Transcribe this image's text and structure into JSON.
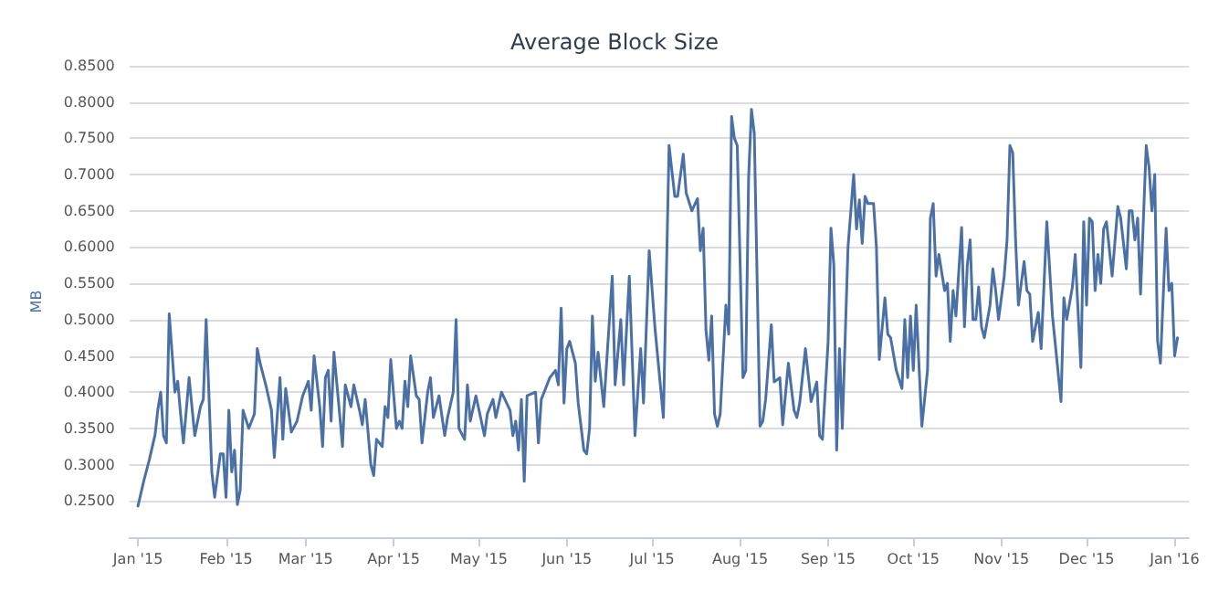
{
  "chart_data": {
    "type": "line",
    "title": "Average Block Size",
    "ylabel": "MB",
    "xlim": [
      "2014-12-29",
      "2016-01-06"
    ],
    "xticks": [
      {
        "value": "2015-01-01",
        "label": "Jan '15"
      },
      {
        "value": "2015-02-01",
        "label": "Feb '15"
      },
      {
        "value": "2015-03-01",
        "label": "Mar '15"
      },
      {
        "value": "2015-04-01",
        "label": "Apr '15"
      },
      {
        "value": "2015-05-01",
        "label": "May '15"
      },
      {
        "value": "2015-06-01",
        "label": "Jun '15"
      },
      {
        "value": "2015-07-01",
        "label": "Jul '15"
      },
      {
        "value": "2015-08-01",
        "label": "Aug '15"
      },
      {
        "value": "2015-09-01",
        "label": "Sep '15"
      },
      {
        "value": "2015-10-01",
        "label": "Oct '15"
      },
      {
        "value": "2015-11-01",
        "label": "Nov '15"
      },
      {
        "value": "2015-12-01",
        "label": "Dec '15"
      },
      {
        "value": "2016-01-01",
        "label": "Jan '16"
      }
    ],
    "ylim": [
      0.2,
      0.85
    ],
    "yticks": [
      {
        "value": 0.25,
        "label": "0.2500"
      },
      {
        "value": 0.3,
        "label": "0.3000"
      },
      {
        "value": 0.35,
        "label": "0.3500"
      },
      {
        "value": 0.4,
        "label": "0.4000"
      },
      {
        "value": 0.45,
        "label": "0.4500"
      },
      {
        "value": 0.5,
        "label": "0.5000"
      },
      {
        "value": 0.55,
        "label": "0.5500"
      },
      {
        "value": 0.6,
        "label": "0.6000"
      },
      {
        "value": 0.65,
        "label": "0.6500"
      },
      {
        "value": 0.7,
        "label": "0.7000"
      },
      {
        "value": 0.75,
        "label": "0.7500"
      },
      {
        "value": 0.8,
        "label": "0.8000"
      },
      {
        "value": 0.85,
        "label": "0.8500"
      }
    ],
    "grid": "y",
    "marker": "none",
    "line_style": "solid",
    "series": [
      {
        "color": "#4a70a6",
        "x": [
          "2015-01-01",
          "2015-01-03",
          "2015-01-05",
          "2015-01-07",
          "2015-01-08",
          "2015-01-09",
          "2015-01-10",
          "2015-01-11",
          "2015-01-12",
          "2015-01-14",
          "2015-01-15",
          "2015-01-16",
          "2015-01-17",
          "2015-01-19",
          "2015-01-21",
          "2015-01-23",
          "2015-01-24",
          "2015-01-25",
          "2015-01-27",
          "2015-01-28",
          "2015-01-30",
          "2015-01-31",
          "2015-02-01",
          "2015-02-02",
          "2015-02-03",
          "2015-02-04",
          "2015-02-05",
          "2015-02-06",
          "2015-02-07",
          "2015-02-09",
          "2015-02-11",
          "2015-02-12",
          "2015-02-13",
          "2015-02-15",
          "2015-02-17",
          "2015-02-18",
          "2015-02-20",
          "2015-02-21",
          "2015-02-22",
          "2015-02-24",
          "2015-02-26",
          "2015-02-28",
          "2015-03-02",
          "2015-03-03",
          "2015-03-04",
          "2015-03-06",
          "2015-03-07",
          "2015-03-08",
          "2015-03-09",
          "2015-03-10",
          "2015-03-11",
          "2015-03-13",
          "2015-03-14",
          "2015-03-15",
          "2015-03-17",
          "2015-03-18",
          "2015-03-20",
          "2015-03-21",
          "2015-03-22",
          "2015-03-24",
          "2015-03-25",
          "2015-03-26",
          "2015-03-28",
          "2015-03-29",
          "2015-03-30",
          "2015-03-31",
          "2015-04-02",
          "2015-04-03",
          "2015-04-04",
          "2015-04-05",
          "2015-04-06",
          "2015-04-07",
          "2015-04-09",
          "2015-04-10",
          "2015-04-11",
          "2015-04-13",
          "2015-04-14",
          "2015-04-15",
          "2015-04-17",
          "2015-04-19",
          "2015-04-20",
          "2015-04-22",
          "2015-04-23",
          "2015-04-24",
          "2015-04-26",
          "2015-04-27",
          "2015-04-28",
          "2015-04-30",
          "2015-05-03",
          "2015-05-04",
          "2015-05-06",
          "2015-05-07",
          "2015-05-09",
          "2015-05-12",
          "2015-05-13",
          "2015-05-14",
          "2015-05-15",
          "2015-05-16",
          "2015-05-17",
          "2015-05-18",
          "2015-05-21",
          "2015-05-22",
          "2015-05-23",
          "2015-05-24",
          "2015-05-26",
          "2015-05-28",
          "2015-05-29",
          "2015-05-30",
          "2015-05-31",
          "2015-06-01",
          "2015-06-02",
          "2015-06-04",
          "2015-06-05",
          "2015-06-07",
          "2015-06-08",
          "2015-06-09",
          "2015-06-10",
          "2015-06-11",
          "2015-06-12",
          "2015-06-14",
          "2015-06-16",
          "2015-06-17",
          "2015-06-18",
          "2015-06-20",
          "2015-06-21",
          "2015-06-23",
          "2015-06-25",
          "2015-06-27",
          "2015-06-28",
          "2015-06-30",
          "2015-07-02",
          "2015-07-05",
          "2015-07-07",
          "2015-07-09",
          "2015-07-10",
          "2015-07-12",
          "2015-07-13",
          "2015-07-15",
          "2015-07-17",
          "2015-07-18",
          "2015-07-19",
          "2015-07-20",
          "2015-07-21",
          "2015-07-22",
          "2015-07-23",
          "2015-07-24",
          "2015-07-25",
          "2015-07-27",
          "2015-07-28",
          "2015-07-29",
          "2015-07-30",
          "2015-07-31",
          "2015-08-02",
          "2015-08-03",
          "2015-08-04",
          "2015-08-05",
          "2015-08-06",
          "2015-08-08",
          "2015-08-09",
          "2015-08-10",
          "2015-08-12",
          "2015-08-13",
          "2015-08-15",
          "2015-08-16",
          "2015-08-18",
          "2015-08-20",
          "2015-08-21",
          "2015-08-22",
          "2015-08-24",
          "2015-08-26",
          "2015-08-28",
          "2015-08-29",
          "2015-08-30",
          "2015-09-01",
          "2015-09-02",
          "2015-09-03",
          "2015-09-04",
          "2015-09-05",
          "2015-09-06",
          "2015-09-08",
          "2015-09-10",
          "2015-09-11",
          "2015-09-12",
          "2015-09-13",
          "2015-09-14",
          "2015-09-15",
          "2015-09-17",
          "2015-09-18",
          "2015-09-19",
          "2015-09-21",
          "2015-09-22",
          "2015-09-23",
          "2015-09-25",
          "2015-09-27",
          "2015-09-28",
          "2015-09-29",
          "2015-09-30",
          "2015-10-01",
          "2015-10-02",
          "2015-10-04",
          "2015-10-06",
          "2015-10-07",
          "2015-10-08",
          "2015-10-09",
          "2015-10-10",
          "2015-10-12",
          "2015-10-13",
          "2015-10-14",
          "2015-10-15",
          "2015-10-16",
          "2015-10-18",
          "2015-10-19",
          "2015-10-20",
          "2015-10-21",
          "2015-10-22",
          "2015-10-23",
          "2015-10-24",
          "2015-10-25",
          "2015-10-26",
          "2015-10-28",
          "2015-10-29",
          "2015-10-30",
          "2015-10-31",
          "2015-11-02",
          "2015-11-03",
          "2015-11-04",
          "2015-11-05",
          "2015-11-06",
          "2015-11-07",
          "2015-11-09",
          "2015-11-10",
          "2015-11-11",
          "2015-11-12",
          "2015-11-14",
          "2015-11-15",
          "2015-11-17",
          "2015-11-19",
          "2015-11-22",
          "2015-11-23",
          "2015-11-24",
          "2015-11-26",
          "2015-11-27",
          "2015-11-29",
          "2015-11-30",
          "2015-12-01",
          "2015-12-02",
          "2015-12-03",
          "2015-12-04",
          "2015-12-05",
          "2015-12-06",
          "2015-12-07",
          "2015-12-08",
          "2015-12-10",
          "2015-12-12",
          "2015-12-13",
          "2015-12-15",
          "2015-12-16",
          "2015-12-17",
          "2015-12-18",
          "2015-12-19",
          "2015-12-20",
          "2015-12-22",
          "2015-12-23",
          "2015-12-24",
          "2015-12-25",
          "2015-12-26",
          "2015-12-27",
          "2015-12-29",
          "2015-12-30",
          "2015-12-31",
          "2016-01-01",
          "2016-01-02"
        ],
        "values": [
          0.243,
          0.277,
          0.307,
          0.341,
          0.376,
          0.4,
          0.34,
          0.33,
          0.508,
          0.4,
          0.415,
          0.37,
          0.33,
          0.42,
          0.34,
          0.38,
          0.39,
          0.5,
          0.29,
          0.255,
          0.315,
          0.315,
          0.255,
          0.375,
          0.29,
          0.32,
          0.245,
          0.265,
          0.375,
          0.35,
          0.37,
          0.46,
          0.44,
          0.41,
          0.375,
          0.31,
          0.42,
          0.335,
          0.405,
          0.345,
          0.36,
          0.395,
          0.415,
          0.375,
          0.45,
          0.38,
          0.325,
          0.42,
          0.43,
          0.36,
          0.455,
          0.37,
          0.325,
          0.41,
          0.38,
          0.41,
          0.375,
          0.355,
          0.39,
          0.3,
          0.285,
          0.335,
          0.325,
          0.38,
          0.365,
          0.445,
          0.35,
          0.36,
          0.35,
          0.415,
          0.38,
          0.45,
          0.395,
          0.39,
          0.33,
          0.4,
          0.42,
          0.365,
          0.395,
          0.34,
          0.365,
          0.4,
          0.5,
          0.35,
          0.335,
          0.41,
          0.36,
          0.395,
          0.34,
          0.37,
          0.39,
          0.365,
          0.4,
          0.375,
          0.34,
          0.36,
          0.32,
          0.39,
          0.277,
          0.395,
          0.4,
          0.33,
          0.39,
          0.4,
          0.42,
          0.43,
          0.41,
          0.516,
          0.385,
          0.46,
          0.47,
          0.44,
          0.385,
          0.32,
          0.315,
          0.35,
          0.505,
          0.415,
          0.455,
          0.38,
          0.5,
          0.56,
          0.41,
          0.5,
          0.41,
          0.56,
          0.34,
          0.46,
          0.385,
          0.595,
          0.49,
          0.365,
          0.74,
          0.67,
          0.67,
          0.728,
          0.675,
          0.65,
          0.667,
          0.595,
          0.626,
          0.485,
          0.444,
          0.505,
          0.37,
          0.353,
          0.37,
          0.52,
          0.48,
          0.78,
          0.75,
          0.74,
          0.42,
          0.43,
          0.695,
          0.79,
          0.757,
          0.353,
          0.36,
          0.39,
          0.493,
          0.414,
          0.42,
          0.355,
          0.44,
          0.375,
          0.365,
          0.385,
          0.46,
          0.387,
          0.414,
          0.34,
          0.335,
          0.47,
          0.626,
          0.576,
          0.32,
          0.46,
          0.35,
          0.6,
          0.7,
          0.625,
          0.665,
          0.605,
          0.67,
          0.66,
          0.66,
          0.6,
          0.445,
          0.53,
          0.48,
          0.475,
          0.43,
          0.405,
          0.5,
          0.42,
          0.505,
          0.43,
          0.52,
          0.353,
          0.43,
          0.64,
          0.66,
          0.56,
          0.59,
          0.54,
          0.55,
          0.47,
          0.54,
          0.505,
          0.627,
          0.49,
          0.575,
          0.61,
          0.5,
          0.5,
          0.545,
          0.49,
          0.475,
          0.52,
          0.57,
          0.54,
          0.5,
          0.56,
          0.61,
          0.74,
          0.73,
          0.61,
          0.52,
          0.58,
          0.54,
          0.535,
          0.47,
          0.51,
          0.46,
          0.635,
          0.505,
          0.387,
          0.53,
          0.5,
          0.545,
          0.59,
          0.434,
          0.635,
          0.52,
          0.64,
          0.635,
          0.54,
          0.59,
          0.55,
          0.625,
          0.635,
          0.56,
          0.656,
          0.64,
          0.57,
          0.65,
          0.65,
          0.61,
          0.64,
          0.535,
          0.74,
          0.71,
          0.65,
          0.7,
          0.47,
          0.44,
          0.626,
          0.54,
          0.55,
          0.45,
          0.475
        ]
      }
    ]
  }
}
